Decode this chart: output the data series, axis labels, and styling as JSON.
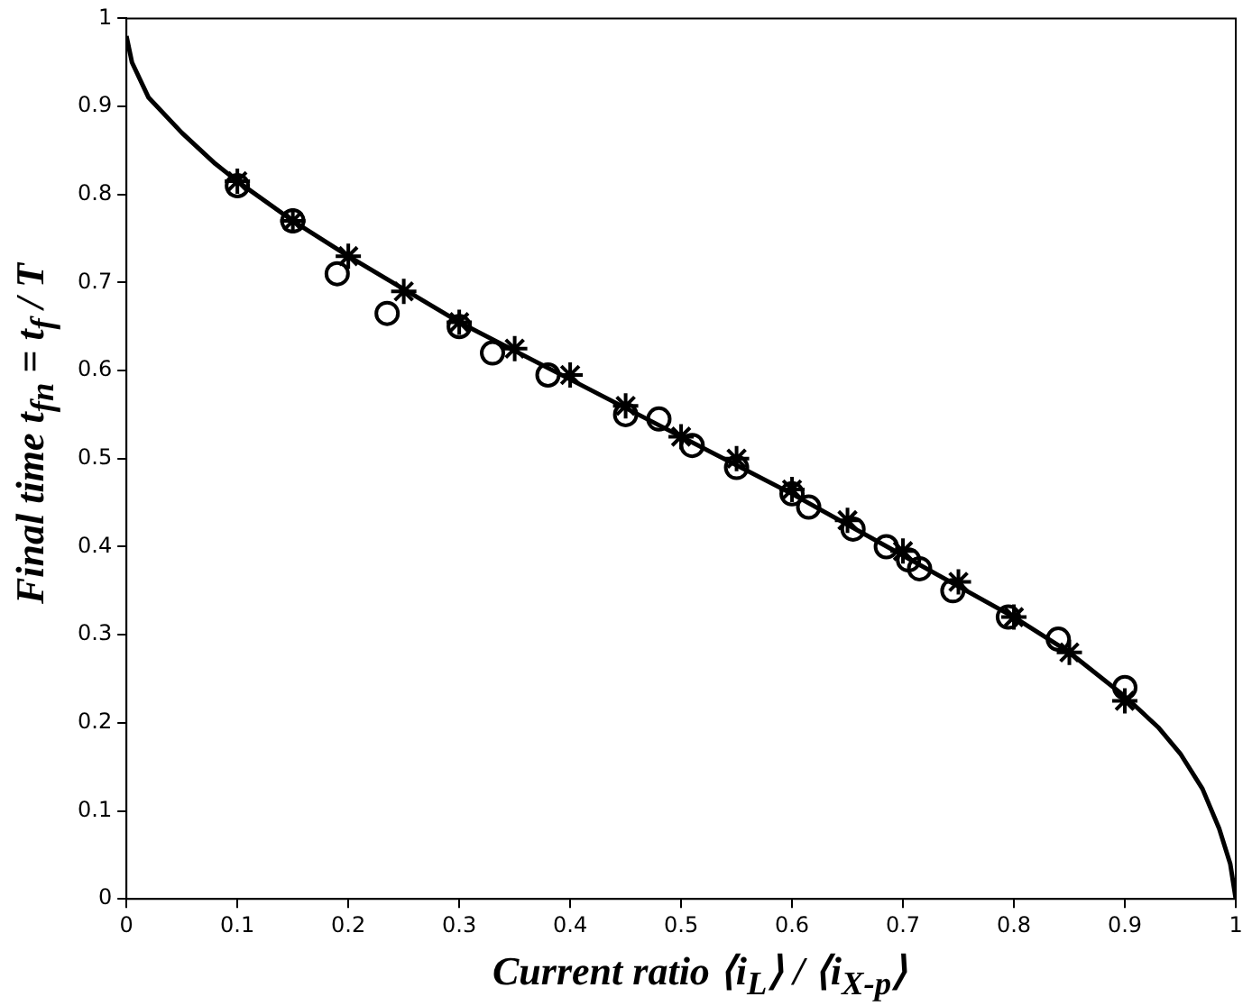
{
  "chart_data": {
    "type": "line",
    "xlabel": "Current ratio ⟨i$_{L}$⟩ / ⟨i$_{X-p}$⟩",
    "ylabel": "Final time  t$_{fn}$ = t$_{f}$ / T",
    "xlim": [
      0,
      1
    ],
    "xticks": [
      0,
      0.1,
      0.2,
      0.3,
      0.4,
      0.5,
      0.6,
      0.7,
      0.8,
      0.9,
      1
    ],
    "ylim": [
      0,
      1
    ],
    "yticks": [
      0,
      0.1,
      0.2,
      0.3,
      0.4,
      0.5,
      0.6,
      0.7,
      0.8,
      0.9,
      1
    ],
    "grid": false,
    "legend": false,
    "series": [
      {
        "type": "line",
        "color": "#000000",
        "marker": "none",
        "line_style": "solid",
        "x": [
          0,
          0.005,
          0.02,
          0.05,
          0.08,
          0.1,
          0.15,
          0.2,
          0.3,
          0.4,
          0.5,
          0.6,
          0.7,
          0.8,
          0.85,
          0.9,
          0.93,
          0.95,
          0.97,
          0.985,
          0.995,
          1.0
        ],
        "values": [
          0.98,
          0.95,
          0.91,
          0.87,
          0.835,
          0.815,
          0.77,
          0.73,
          0.655,
          0.59,
          0.525,
          0.46,
          0.39,
          0.32,
          0.28,
          0.23,
          0.195,
          0.165,
          0.125,
          0.08,
          0.04,
          0.0
        ]
      },
      {
        "type": "scatter",
        "color": "#000000",
        "marker": "cross",
        "x": [
          0.1,
          0.15,
          0.2,
          0.25,
          0.3,
          0.35,
          0.4,
          0.45,
          0.5,
          0.55,
          0.6,
          0.65,
          0.7,
          0.75,
          0.8,
          0.85,
          0.9
        ],
        "values": [
          0.815,
          0.77,
          0.73,
          0.69,
          0.655,
          0.625,
          0.595,
          0.56,
          0.525,
          0.5,
          0.465,
          0.43,
          0.395,
          0.36,
          0.32,
          0.28,
          0.225
        ]
      },
      {
        "type": "scatter",
        "color": "#000000",
        "marker": "circle",
        "x": [
          0.1,
          0.15,
          0.19,
          0.235,
          0.3,
          0.33,
          0.38,
          0.45,
          0.48,
          0.51,
          0.55,
          0.6,
          0.615,
          0.655,
          0.685,
          0.705,
          0.715,
          0.745,
          0.795,
          0.84,
          0.9
        ],
        "values": [
          0.81,
          0.77,
          0.71,
          0.665,
          0.65,
          0.62,
          0.595,
          0.55,
          0.545,
          0.515,
          0.49,
          0.46,
          0.445,
          0.42,
          0.4,
          0.385,
          0.375,
          0.35,
          0.32,
          0.295,
          0.24
        ]
      }
    ]
  }
}
